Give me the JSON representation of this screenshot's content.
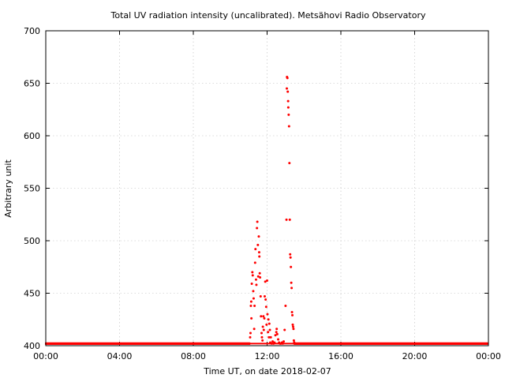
{
  "chart_data": {
    "type": "scatter",
    "title": "Total UV radiation intensity (uncalibrated). Metsähovi Radio Observatory",
    "xlabel": "Time UT, on date 2018-02-07",
    "ylabel": "Arbitrary unit",
    "x_unit": "hours UT",
    "xlim": [
      0,
      24
    ],
    "ylim": [
      400,
      700
    ],
    "x_ticks": [
      {
        "value": 0,
        "label": "00:00"
      },
      {
        "value": 4,
        "label": "04:00"
      },
      {
        "value": 8,
        "label": "08:00"
      },
      {
        "value": 12,
        "label": "12:00"
      },
      {
        "value": 16,
        "label": "16:00"
      },
      {
        "value": 20,
        "label": "20:00"
      },
      {
        "value": 24,
        "label": "00:00"
      }
    ],
    "y_ticks": [
      400,
      450,
      500,
      550,
      600,
      650,
      700
    ],
    "grid": true,
    "marker_color": "#ff0000",
    "baseline": {
      "value": 402,
      "x_start": 0,
      "x_end": 24,
      "description": "near-continuous points at ~402 before 11:00 and after 13:30"
    },
    "series": [
      {
        "points": [
          [
            11.05,
            402
          ],
          [
            11.08,
            408
          ],
          [
            11.1,
            412
          ],
          [
            11.12,
            438
          ],
          [
            11.14,
            442
          ],
          [
            11.15,
            426
          ],
          [
            11.17,
            459
          ],
          [
            11.2,
            470
          ],
          [
            11.22,
            467
          ],
          [
            11.25,
            452
          ],
          [
            11.27,
            445
          ],
          [
            11.3,
            416
          ],
          [
            11.32,
            438
          ],
          [
            11.35,
            479
          ],
          [
            11.37,
            492
          ],
          [
            11.4,
            463
          ],
          [
            11.42,
            458
          ],
          [
            11.45,
            512
          ],
          [
            11.47,
            518
          ],
          [
            11.5,
            496
          ],
          [
            11.52,
            466
          ],
          [
            11.55,
            504
          ],
          [
            11.57,
            489
          ],
          [
            11.58,
            485
          ],
          [
            11.6,
            469
          ],
          [
            11.62,
            465
          ],
          [
            11.65,
            447
          ],
          [
            11.67,
            428
          ],
          [
            11.7,
            412
          ],
          [
            11.72,
            408
          ],
          [
            11.75,
            405
          ],
          [
            11.77,
            418
          ],
          [
            11.8,
            428
          ],
          [
            11.82,
            415
          ],
          [
            11.85,
            426
          ],
          [
            11.87,
            447
          ],
          [
            11.9,
            461
          ],
          [
            11.92,
            444
          ],
          [
            11.95,
            437
          ],
          [
            11.97,
            420
          ],
          [
            12.0,
            462
          ],
          [
            12.02,
            430
          ],
          [
            12.05,
            413
          ],
          [
            12.07,
            425
          ],
          [
            12.1,
            408
          ],
          [
            12.12,
            421
          ],
          [
            12.15,
            415
          ],
          [
            12.17,
            403
          ],
          [
            12.2,
            408
          ],
          [
            12.25,
            402
          ],
          [
            12.3,
            404
          ],
          [
            12.35,
            402
          ],
          [
            12.4,
            403
          ],
          [
            12.45,
            410
          ],
          [
            12.5,
            413
          ],
          [
            12.52,
            416
          ],
          [
            12.55,
            411
          ],
          [
            12.6,
            406
          ],
          [
            12.65,
            403
          ],
          [
            12.7,
            402
          ],
          [
            12.75,
            402
          ],
          [
            12.8,
            403
          ],
          [
            12.85,
            402
          ],
          [
            12.9,
            404
          ],
          [
            12.95,
            415
          ],
          [
            13.0,
            438
          ],
          [
            13.05,
            520
          ],
          [
            13.07,
            645
          ],
          [
            13.08,
            656
          ],
          [
            13.1,
            655
          ],
          [
            13.12,
            642
          ],
          [
            13.14,
            633
          ],
          [
            13.15,
            627
          ],
          [
            13.17,
            620
          ],
          [
            13.19,
            609
          ],
          [
            13.21,
            574
          ],
          [
            13.23,
            520
          ],
          [
            13.25,
            487
          ],
          [
            13.27,
            484
          ],
          [
            13.29,
            475
          ],
          [
            13.31,
            460
          ],
          [
            13.33,
            455
          ],
          [
            13.35,
            432
          ],
          [
            13.37,
            429
          ],
          [
            13.39,
            420
          ],
          [
            13.41,
            418
          ],
          [
            13.43,
            416
          ],
          [
            13.45,
            405
          ],
          [
            13.47,
            403
          ]
        ]
      }
    ]
  }
}
